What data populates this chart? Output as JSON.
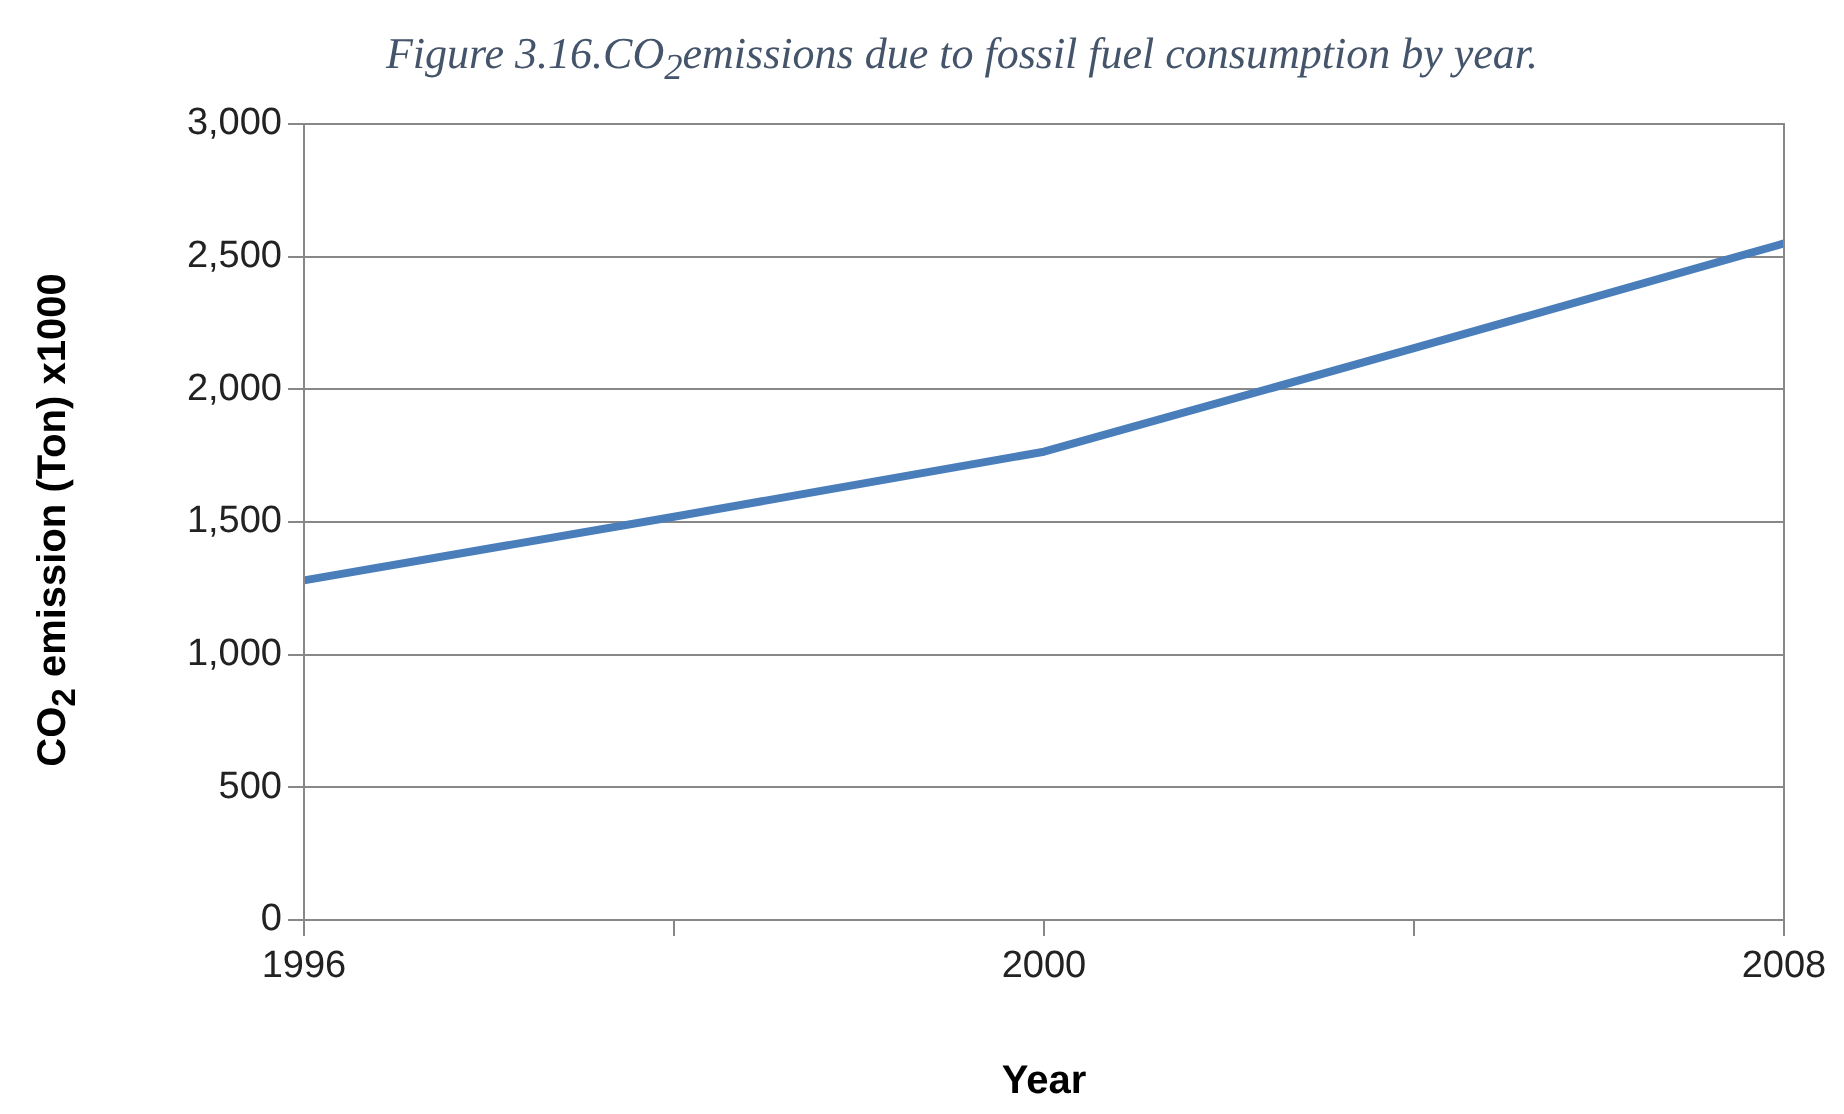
{
  "chart_data": {
    "type": "line",
    "title": "Figure 3.16.CO$_{2}$emissions due to fossil fuel consumption by year.",
    "xlabel": "Year",
    "ylabel": "CO$_{2}$ emission (Ton) x1000",
    "categories": [
      "1996",
      null,
      "2000",
      null,
      "2008"
    ],
    "series": [
      {
        "color": "#4a7ebb",
        "values": [
          1280,
          1520,
          1765,
          2155,
          2550
        ]
      }
    ],
    "ylim": [
      0,
      3000
    ],
    "yticks": [
      {
        "value": 0,
        "label": "0"
      },
      {
        "value": 500,
        "label": "500"
      },
      {
        "value": 1000,
        "label": "1,000"
      },
      {
        "value": 1500,
        "label": "1,500"
      },
      {
        "value": 2000,
        "label": "2,000"
      },
      {
        "value": 2500,
        "label": "2,500"
      },
      {
        "value": 3000,
        "label": "3,000"
      }
    ],
    "grid": "y",
    "legend": false,
    "marker": "none",
    "line_style": "solid"
  }
}
